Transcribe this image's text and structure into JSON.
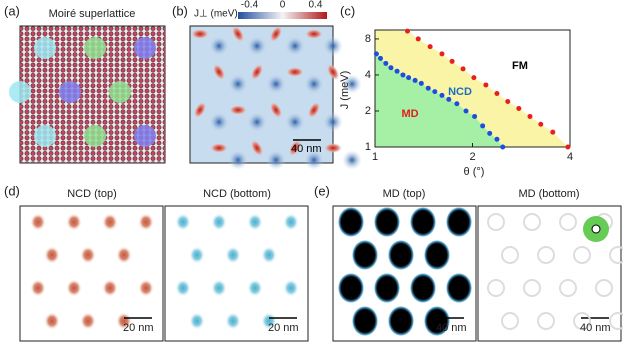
{
  "panels": {
    "a": {
      "label": "(a)",
      "title": "Moiré superlattice"
    },
    "b": {
      "label": "(b)",
      "colorbar_label": "J⊥ (meV)",
      "colorbar_lim": [
        -0.54,
        0.54
      ],
      "colorbar_ticks": [
        -0.4,
        0,
        0.4
      ],
      "scale_bar": "40 nm"
    },
    "c": {
      "label": "(c)"
    },
    "d": {
      "label": "(d)",
      "images": [
        {
          "title": "NCD (top)",
          "scale_bar": "20 nm"
        },
        {
          "title": "NCD (bottom)",
          "scale_bar": "20 nm"
        }
      ]
    },
    "e": {
      "label": "(e)",
      "images": [
        {
          "title": "MD (top)",
          "scale_bar": "40 nm"
        },
        {
          "title": "MD (bottom)",
          "scale_bar": "40 nm"
        }
      ]
    }
  },
  "chart_data": {
    "type": "scatter",
    "xlabel": "θ (°)",
    "ylabel": "J (meV)",
    "xscale": "log",
    "yscale": "log",
    "xlim": [
      1,
      4
    ],
    "ylim": [
      1,
      9.5
    ],
    "xticks": [
      1,
      2,
      4
    ],
    "yticks": [
      1,
      2,
      4,
      8
    ],
    "region_colors": {
      "ncd": "#faf5a6",
      "md": "#a6f0a6"
    },
    "annotations": [
      {
        "text": "FM",
        "color": "#000000"
      },
      {
        "text": "NCD",
        "color": "#1a6fc4"
      },
      {
        "text": "MD",
        "color": "#e0201b"
      }
    ],
    "series": [
      {
        "color": "#e8201c",
        "x": [
          1.26,
          1.36,
          1.48,
          1.61,
          1.73,
          1.87,
          2.02,
          2.2,
          2.38,
          2.57,
          2.78,
          3.01,
          3.25,
          3.54,
          3.94
        ],
        "values": [
          9.3,
          8.0,
          6.9,
          6.0,
          5.2,
          4.5,
          3.8,
          3.3,
          2.8,
          2.4,
          2.1,
          1.8,
          1.55,
          1.33,
          1.0
        ]
      },
      {
        "color": "#1c4fe0",
        "x": [
          1.01,
          1.04,
          1.08,
          1.12,
          1.17,
          1.22,
          1.27,
          1.33,
          1.39,
          1.46,
          1.53,
          1.61,
          1.69,
          1.79,
          1.91,
          2.03,
          2.15,
          2.26,
          2.38,
          2.48
        ],
        "values": [
          6.0,
          5.5,
          5.0,
          4.6,
          4.3,
          4.0,
          3.8,
          3.6,
          3.4,
          3.1,
          2.9,
          2.7,
          2.5,
          2.3,
          2.0,
          1.8,
          1.5,
          1.3,
          1.16,
          1.0
        ]
      }
    ]
  }
}
